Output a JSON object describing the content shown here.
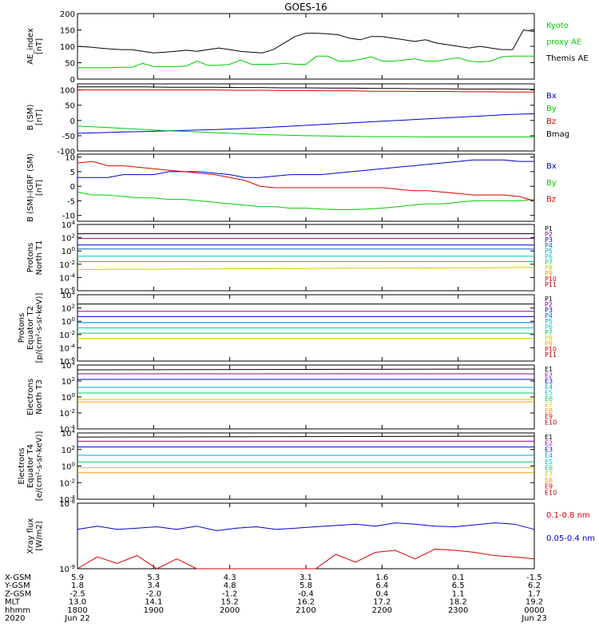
{
  "title": "GOES-16",
  "colors": {
    "black": "#000000",
    "green": "#00cc00",
    "blue": "#0000cc",
    "red": "#dd0000",
    "cyan": "#00cccc",
    "yellow": "#cccc00",
    "orange": "#ff9900",
    "magenta": "#990099",
    "darkred": "#aa0000"
  },
  "chart_data": [
    {
      "type": "line",
      "ylabel": [
        "AE_index",
        "[nT]"
      ],
      "ylim": [
        0,
        200
      ],
      "yticks": [
        "0",
        "50",
        "100",
        "150",
        "200"
      ],
      "legend": [
        {
          "label": "Kyoto",
          "color": "#00cc00"
        },
        {
          "label": "proxy AE",
          "color": "#00cc00"
        },
        {
          "label": "Themis AE",
          "color": "#000000"
        }
      ],
      "series": [
        {
          "name": "Kyoto proxy AE",
          "color": "#00cc00",
          "values": [
            35,
            35,
            35,
            35,
            36,
            36,
            48,
            38,
            38,
            38,
            40,
            55,
            42,
            42,
            45,
            58,
            45,
            45,
            45,
            48,
            45,
            45,
            70,
            70,
            55,
            55,
            60,
            68,
            55,
            55,
            58,
            62,
            55,
            55,
            60,
            65,
            55,
            52,
            55,
            68,
            70,
            70,
            70
          ]
        },
        {
          "name": "Themis AE",
          "color": "#000000",
          "values": [
            100,
            98,
            95,
            92,
            90,
            90,
            85,
            80,
            82,
            85,
            88,
            85,
            90,
            95,
            90,
            85,
            82,
            80,
            90,
            110,
            130,
            140,
            140,
            138,
            135,
            125,
            120,
            130,
            130,
            125,
            120,
            115,
            120,
            110,
            105,
            100,
            95,
            100,
            95,
            90,
            90,
            150,
            145
          ]
        }
      ]
    },
    {
      "type": "line",
      "ylabel": [
        "B (SM)",
        "[nT]"
      ],
      "ylim": [
        -100,
        120
      ],
      "yticks": [
        "-100",
        "-50",
        "0",
        "50",
        "100"
      ],
      "legend": [
        {
          "label": "Bx",
          "color": "#0000cc"
        },
        {
          "label": "By",
          "color": "#00cc00"
        },
        {
          "label": "Bz",
          "color": "#dd0000"
        },
        {
          "label": "Bmag",
          "color": "#000000"
        }
      ],
      "series": [
        {
          "name": "Bx",
          "color": "#0000cc",
          "values": [
            -42,
            -40,
            -38,
            -36,
            -34,
            -32,
            -30,
            -27,
            -24,
            -20,
            -16,
            -12,
            -8,
            -4,
            0,
            4,
            8,
            12,
            16,
            20,
            22
          ]
        },
        {
          "name": "By",
          "color": "#00cc00",
          "values": [
            -18,
            -22,
            -26,
            -30,
            -34,
            -37,
            -40,
            -43,
            -46,
            -48,
            -50,
            -51,
            -52,
            -53,
            -53,
            -54,
            -54,
            -54,
            -54,
            -54,
            -54
          ]
        },
        {
          "name": "Bz",
          "color": "#dd0000",
          "values": [
            100,
            100,
            100,
            100,
            100,
            100,
            100,
            99,
            99,
            98,
            98,
            97,
            97,
            96,
            96,
            95,
            95,
            94,
            94,
            93,
            93
          ]
        },
        {
          "name": "Bmag",
          "color": "#000000",
          "values": [
            110,
            110,
            110,
            110,
            109,
            109,
            109,
            108,
            108,
            107,
            107,
            106,
            106,
            105,
            105,
            104,
            104,
            103,
            103,
            103,
            102
          ]
        }
      ]
    },
    {
      "type": "line",
      "ylabel": [
        "B (SM)-IGRF (SM)",
        "[nT]"
      ],
      "ylim": [
        -12,
        11
      ],
      "yticks": [
        "-10",
        "-5",
        "0",
        "5",
        "10"
      ],
      "legend": [
        {
          "label": "Bx",
          "color": "#0000cc"
        },
        {
          "label": "By",
          "color": "#00cc00"
        },
        {
          "label": "Bz",
          "color": "#dd0000"
        }
      ],
      "series": [
        {
          "name": "Bx",
          "color": "#0000cc",
          "values": [
            3,
            3,
            3,
            4,
            4,
            4,
            5,
            5,
            5,
            4.5,
            4,
            3,
            3,
            3.5,
            4,
            4,
            4,
            4.5,
            5,
            5.5,
            6,
            6.5,
            7,
            7.5,
            8,
            8.5,
            9,
            9,
            9,
            8.5,
            8.5
          ]
        },
        {
          "name": "By",
          "color": "#00cc00",
          "values": [
            -2,
            -3,
            -3,
            -3.5,
            -4,
            -4,
            -4.5,
            -4.5,
            -5,
            -5.5,
            -6,
            -6.5,
            -7,
            -7,
            -7.5,
            -7.5,
            -7.8,
            -8,
            -8,
            -7.8,
            -7.5,
            -7,
            -6.5,
            -6,
            -6,
            -5.5,
            -5,
            -5,
            -5,
            -5,
            -4.5
          ]
        },
        {
          "name": "Bz",
          "color": "#dd0000",
          "values": [
            8,
            8.5,
            7,
            7,
            6.5,
            6,
            5.5,
            5,
            4.5,
            4,
            3,
            2,
            0,
            -0.5,
            -0.5,
            -0.5,
            -0.5,
            -0.5,
            -0.5,
            -0.5,
            -0.5,
            -1,
            -1.5,
            -1.5,
            -2,
            -2.5,
            -3,
            -3,
            -3,
            -3.5,
            -5
          ]
        }
      ]
    },
    {
      "type": "line",
      "ylabel": [
        "Protons",
        "North T1"
      ],
      "ylim": [
        -6,
        4
      ],
      "yticks": [
        "10^-6",
        "10^-4",
        "10^-2",
        "10^0",
        "10^2",
        "10^4"
      ],
      "legend": [
        {
          "label": "P1",
          "color": "#000000"
        },
        {
          "label": "P2",
          "color": "#990099"
        },
        {
          "label": "P3",
          "color": "#0000cc"
        },
        {
          "label": "P4",
          "color": "#0066cc"
        },
        {
          "label": "P5",
          "color": "#00aacc"
        },
        {
          "label": "P6",
          "color": "#00cccc"
        },
        {
          "label": "P7",
          "color": "#00cc66"
        },
        {
          "label": "P8",
          "color": "#cccc00"
        },
        {
          "label": "P9",
          "color": "#ff9900"
        },
        {
          "label": "P10",
          "color": "#dd0000"
        },
        {
          "label": "P11",
          "color": "#aa0000"
        }
      ],
      "series": [
        {
          "name": "P1",
          "color": "#000000",
          "values": [
            2.6,
            2.6
          ]
        },
        {
          "name": "P2",
          "color": "#990099",
          "values": [
            1.9,
            1.9
          ]
        },
        {
          "name": "P3",
          "color": "#0000cc",
          "values": [
            0.9,
            0.9
          ]
        },
        {
          "name": "P4",
          "color": "#0066cc",
          "values": [
            0.3,
            0.3
          ]
        },
        {
          "name": "P5",
          "color": "#00cccc",
          "values": [
            -0.8,
            -0.8
          ]
        },
        {
          "name": "P6",
          "color": "#00cc66",
          "values": [
            -1.6,
            -1.6
          ]
        },
        {
          "name": "P7",
          "color": "#cccc00",
          "values": [
            -2.8,
            -2.5
          ]
        }
      ]
    },
    {
      "type": "line",
      "ylabel": [
        "Protons",
        "Equator T2",
        "[p/(cm²-s-sr-keV)]"
      ],
      "ylim": [
        -6,
        4
      ],
      "yticks": [
        "10^-6",
        "10^-4",
        "10^-2",
        "10^0",
        "10^2",
        "10^4"
      ],
      "legend": [
        {
          "label": "P1",
          "color": "#000000"
        },
        {
          "label": "P2",
          "color": "#990099"
        },
        {
          "label": "P3",
          "color": "#0000cc"
        },
        {
          "label": "P4",
          "color": "#0066cc"
        },
        {
          "label": "P5",
          "color": "#00aacc"
        },
        {
          "label": "P6",
          "color": "#00cccc"
        },
        {
          "label": "P7",
          "color": "#00cc66"
        },
        {
          "label": "P8",
          "color": "#cccc00"
        },
        {
          "label": "P9",
          "color": "#ff9900"
        },
        {
          "label": "P10",
          "color": "#dd0000"
        },
        {
          "label": "P11",
          "color": "#aa0000"
        }
      ],
      "series": [
        {
          "name": "P1",
          "color": "#000000",
          "values": [
            2.6,
            2.6
          ]
        },
        {
          "name": "P2",
          "color": "#990099",
          "values": [
            1.5,
            1.5
          ]
        },
        {
          "name": "P3",
          "color": "#0000cc",
          "values": [
            0.7,
            0.7
          ]
        },
        {
          "name": "P4",
          "color": "#0066cc",
          "values": [
            -0.2,
            -0.2
          ]
        },
        {
          "name": "P5",
          "color": "#00cccc",
          "values": [
            -1.0,
            -1.0
          ]
        },
        {
          "name": "P6",
          "color": "#00cc66",
          "values": [
            -1.8,
            -1.8
          ]
        },
        {
          "name": "P7",
          "color": "#cccc00",
          "values": [
            -2.6,
            -2.6
          ]
        }
      ]
    },
    {
      "type": "line",
      "ylabel": [
        "Electrons",
        "North T3"
      ],
      "ylim": [
        -4,
        4
      ],
      "yticks": [
        "10^-4",
        "10^-2",
        "10^0",
        "10^2",
        "10^4"
      ],
      "legend": [
        {
          "label": "E1",
          "color": "#000000"
        },
        {
          "label": "E2",
          "color": "#990099"
        },
        {
          "label": "E3",
          "color": "#0000cc"
        },
        {
          "label": "E4",
          "color": "#00aacc"
        },
        {
          "label": "E5",
          "color": "#00cccc"
        },
        {
          "label": "E6",
          "color": "#00cc66"
        },
        {
          "label": "E7",
          "color": "#cccc00"
        },
        {
          "label": "E8",
          "color": "#ff9900"
        },
        {
          "label": "E9",
          "color": "#dd0000"
        },
        {
          "label": "E10",
          "color": "#aa0000"
        }
      ],
      "series": [
        {
          "name": "E1",
          "color": "#000000",
          "values": [
            3.4,
            3.5
          ]
        },
        {
          "name": "E2",
          "color": "#990099",
          "values": [
            2.9,
            2.9
          ]
        },
        {
          "name": "E3",
          "color": "#0000cc",
          "values": [
            2.2,
            2.2
          ]
        },
        {
          "name": "E4",
          "color": "#00aacc",
          "values": [
            1.2,
            1.2
          ]
        },
        {
          "name": "E5",
          "color": "#00cc66",
          "values": [
            0.5,
            0.5
          ]
        },
        {
          "name": "E6",
          "color": "#cccc00",
          "values": [
            -0.3,
            -0.3
          ]
        },
        {
          "name": "E7",
          "color": "#ff9900",
          "values": [
            -0.6,
            -0.6
          ]
        }
      ]
    },
    {
      "type": "line",
      "ylabel": [
        "Electrons",
        "Equator T4",
        "[e/(cm²-s-sr-keV)]"
      ],
      "ylim": [
        -4,
        4
      ],
      "yticks": [
        "10^-4",
        "10^-2",
        "10^0",
        "10^2",
        "10^4"
      ],
      "legend": [
        {
          "label": "E1",
          "color": "#000000"
        },
        {
          "label": "E2",
          "color": "#990099"
        },
        {
          "label": "E3",
          "color": "#0000cc"
        },
        {
          "label": "E4",
          "color": "#00aacc"
        },
        {
          "label": "E5",
          "color": "#00cccc"
        },
        {
          "label": "E6",
          "color": "#00cc66"
        },
        {
          "label": "E7",
          "color": "#cccc00"
        },
        {
          "label": "E8",
          "color": "#ff9900"
        },
        {
          "label": "E9",
          "color": "#dd0000"
        },
        {
          "label": "E10",
          "color": "#aa0000"
        }
      ],
      "series": [
        {
          "name": "E1",
          "color": "#000000",
          "values": [
            3.5,
            3.6
          ]
        },
        {
          "name": "E2",
          "color": "#990099",
          "values": [
            3.0,
            3.0
          ]
        },
        {
          "name": "E3",
          "color": "#0000cc",
          "values": [
            2.3,
            2.3
          ]
        },
        {
          "name": "E4",
          "color": "#00aacc",
          "values": [
            1.3,
            1.3
          ]
        },
        {
          "name": "E5",
          "color": "#00cc66",
          "values": [
            0.5,
            0.5
          ]
        },
        {
          "name": "E6",
          "color": "#cccc00",
          "values": [
            -0.2,
            -0.2
          ]
        },
        {
          "name": "E7",
          "color": "#ff9900",
          "values": [
            -0.8,
            -0.8
          ]
        }
      ]
    },
    {
      "type": "line",
      "ylabel": [
        "Xray flux",
        "[W/m2]"
      ],
      "ylim": [
        -9,
        -8
      ],
      "yticks": [
        "10^-9",
        "10^-8"
      ],
      "legend": [
        {
          "label": "0.1-0.8 nm",
          "color": "#dd0000"
        },
        {
          "label": "0.05-0.4 nm",
          "color": "#0000cc"
        }
      ],
      "series": [
        {
          "name": "0.1-0.8 nm",
          "color": "#dd0000",
          "values": [
            -9.0,
            -8.82,
            -8.92,
            -8.8,
            -9.0,
            -8.85,
            -9.0,
            -9.0,
            -9.0,
            -9.0,
            -9.0,
            -9.0,
            -9.0,
            -8.78,
            -8.9,
            -8.75,
            -8.72,
            -8.85,
            -8.7,
            -8.72,
            -8.75,
            -8.8,
            -8.82,
            -8.85
          ]
        },
        {
          "name": "0.05-0.4 nm",
          "color": "#0000cc",
          "values": [
            -8.4,
            -8.35,
            -8.4,
            -8.38,
            -8.36,
            -8.4,
            -8.35,
            -8.42,
            -8.38,
            -8.36,
            -8.4,
            -8.38,
            -8.36,
            -8.34,
            -8.32,
            -8.35,
            -8.3,
            -8.32,
            -8.35,
            -8.36,
            -8.33,
            -8.3,
            -8.32,
            -8.4
          ]
        }
      ]
    }
  ],
  "time_axis": {
    "rows": [
      {
        "name": "X-GSM",
        "values": [
          "5.9",
          "5.3",
          "4.3",
          "3.1",
          "1.6",
          "0.1",
          "-1.5"
        ]
      },
      {
        "name": "Y-GSM",
        "values": [
          "1.8",
          "3.4",
          "4.8",
          "5.8",
          "6.4",
          "6.5",
          "6.2"
        ]
      },
      {
        "name": "Z-GSM",
        "values": [
          "-2.5",
          "-2.0",
          "-1.2",
          "-0.4",
          "0.4",
          "1.1",
          "1.7"
        ]
      },
      {
        "name": "MLT",
        "values": [
          "13.0",
          "14.1",
          "15.2",
          "16.2",
          "17.2",
          "18.2",
          "19.2"
        ]
      },
      {
        "name": "hhmm",
        "values": [
          "1800",
          "1900",
          "2000",
          "2100",
          "2200",
          "2300",
          "0000"
        ]
      },
      {
        "name": "2020",
        "values": [
          "Jun 22",
          "",
          "",
          "",
          "",
          "",
          "Jun 23"
        ]
      }
    ]
  }
}
